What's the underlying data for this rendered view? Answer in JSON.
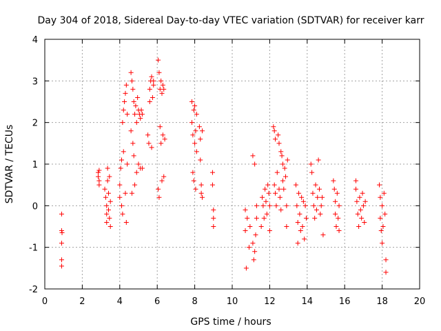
{
  "chart_data": {
    "type": "scatter",
    "title": "Day 304 of 2018, Sidereal Day-to-day VTEC variation (SDTVAR) for receiver karr",
    "xlabel": "GPS time / hours",
    "ylabel": "SDTVAR / TECUs",
    "xlim": [
      0,
      20
    ],
    "ylim": [
      -2,
      4
    ],
    "x_ticks": [
      0,
      2,
      4,
      6,
      8,
      10,
      12,
      14,
      16,
      18,
      20
    ],
    "y_ticks": [
      -2,
      -1,
      0,
      1,
      2,
      3,
      4
    ],
    "grid": true,
    "marker": "+",
    "point_color": "#ff0000",
    "series": [
      {
        "name": "SDTVAR",
        "points": [
          [
            0.9,
            -0.2
          ],
          [
            0.9,
            -0.6
          ],
          [
            0.9,
            -0.9
          ],
          [
            0.9,
            -1.3
          ],
          [
            0.9,
            -1.45
          ],
          [
            0.92,
            -0.65
          ],
          [
            2.85,
            0.8
          ],
          [
            2.85,
            0.7
          ],
          [
            2.9,
            0.6
          ],
          [
            2.9,
            0.5
          ],
          [
            2.9,
            0.85
          ],
          [
            3.2,
            0.4
          ],
          [
            3.25,
            0.2
          ],
          [
            3.3,
            0.0
          ],
          [
            3.3,
            -0.2
          ],
          [
            3.3,
            -0.4
          ],
          [
            3.35,
            0.6
          ],
          [
            3.35,
            0.9
          ],
          [
            3.4,
            0.3
          ],
          [
            3.4,
            -0.1
          ],
          [
            3.45,
            -0.3
          ],
          [
            3.45,
            0.7
          ],
          [
            3.5,
            0.1
          ],
          [
            3.5,
            -0.5
          ],
          [
            4.0,
            0.2
          ],
          [
            4.0,
            0.5
          ],
          [
            4.05,
            0.9
          ],
          [
            4.1,
            1.1
          ],
          [
            4.1,
            0.0
          ],
          [
            4.15,
            2.0
          ],
          [
            4.15,
            -0.2
          ],
          [
            4.2,
            2.3
          ],
          [
            4.2,
            1.3
          ],
          [
            4.25,
            2.5
          ],
          [
            4.3,
            2.7
          ],
          [
            4.3,
            0.3
          ],
          [
            4.35,
            2.9
          ],
          [
            4.35,
            -0.4
          ],
          [
            4.4,
            1.0
          ],
          [
            4.4,
            2.2
          ],
          [
            4.6,
            3.2
          ],
          [
            4.6,
            1.8
          ],
          [
            4.65,
            3.0
          ],
          [
            4.65,
            0.3
          ],
          [
            4.7,
            2.8
          ],
          [
            4.7,
            1.5
          ],
          [
            4.75,
            2.5
          ],
          [
            4.75,
            1.2
          ],
          [
            4.8,
            0.5
          ],
          [
            4.8,
            2.2
          ],
          [
            4.85,
            2.4
          ],
          [
            4.9,
            2.0
          ],
          [
            4.9,
            0.8
          ],
          [
            4.95,
            2.6
          ],
          [
            5.0,
            2.3
          ],
          [
            5.0,
            1.0
          ],
          [
            5.05,
            2.2
          ],
          [
            5.1,
            0.9
          ],
          [
            5.1,
            2.1
          ],
          [
            5.15,
            2.3
          ],
          [
            5.2,
            0.9
          ],
          [
            5.2,
            2.2
          ],
          [
            5.5,
            1.7
          ],
          [
            5.55,
            1.5
          ],
          [
            5.6,
            2.8
          ],
          [
            5.6,
            2.5
          ],
          [
            5.65,
            3.0
          ],
          [
            5.7,
            3.1
          ],
          [
            5.7,
            1.4
          ],
          [
            5.75,
            2.6
          ],
          [
            5.8,
            2.9
          ],
          [
            5.8,
            3.0
          ],
          [
            6.05,
            3.5
          ],
          [
            6.05,
            0.4
          ],
          [
            6.1,
            3.2
          ],
          [
            6.1,
            0.2
          ],
          [
            6.15,
            2.8
          ],
          [
            6.15,
            1.9
          ],
          [
            6.2,
            3.0
          ],
          [
            6.2,
            1.5
          ],
          [
            6.25,
            2.7
          ],
          [
            6.25,
            0.6
          ],
          [
            6.3,
            2.9
          ],
          [
            6.3,
            1.7
          ],
          [
            6.35,
            2.8
          ],
          [
            6.35,
            0.7
          ],
          [
            6.4,
            1.6
          ],
          [
            7.85,
            2.5
          ],
          [
            7.85,
            2.0
          ],
          [
            7.9,
            1.7
          ],
          [
            7.9,
            0.8
          ],
          [
            7.95,
            2.3
          ],
          [
            7.95,
            0.6
          ],
          [
            8.0,
            1.5
          ],
          [
            8.0,
            2.4
          ],
          [
            8.05,
            0.4
          ],
          [
            8.05,
            1.8
          ],
          [
            8.1,
            2.2
          ],
          [
            8.1,
            1.3
          ],
          [
            8.25,
            1.9
          ],
          [
            8.3,
            1.6
          ],
          [
            8.3,
            1.1
          ],
          [
            8.35,
            0.5
          ],
          [
            8.35,
            0.3
          ],
          [
            8.4,
            1.8
          ],
          [
            8.4,
            0.2
          ],
          [
            8.95,
            0.8
          ],
          [
            8.95,
            0.5
          ],
          [
            9.0,
            -0.1
          ],
          [
            9.0,
            -0.3
          ],
          [
            9.0,
            -0.5
          ],
          [
            10.7,
            -0.1
          ],
          [
            10.7,
            -0.6
          ],
          [
            10.75,
            -1.5
          ],
          [
            10.8,
            -0.3
          ],
          [
            10.9,
            -1.0
          ],
          [
            10.95,
            -0.5
          ],
          [
            11.1,
            1.2
          ],
          [
            11.1,
            -0.9
          ],
          [
            11.15,
            -1.3
          ],
          [
            11.2,
            1.0
          ],
          [
            11.2,
            -1.1
          ],
          [
            11.25,
            -0.7
          ],
          [
            11.3,
            -0.3
          ],
          [
            11.3,
            0.0
          ],
          [
            11.55,
            -0.5
          ],
          [
            11.6,
            0.2
          ],
          [
            11.65,
            0.0
          ],
          [
            11.7,
            -0.3
          ],
          [
            11.75,
            0.4
          ],
          [
            11.8,
            0.1
          ],
          [
            11.85,
            -0.2
          ],
          [
            11.9,
            0.5
          ],
          [
            11.95,
            0.3
          ],
          [
            12.0,
            0.0
          ],
          [
            12.0,
            -0.6
          ],
          [
            12.2,
            1.9
          ],
          [
            12.25,
            1.8
          ],
          [
            12.25,
            0.5
          ],
          [
            12.3,
            1.6
          ],
          [
            12.3,
            0.3
          ],
          [
            12.35,
            0.0
          ],
          [
            12.4,
            0.8
          ],
          [
            12.45,
            1.7
          ],
          [
            12.5,
            0.4
          ],
          [
            12.5,
            1.5
          ],
          [
            12.55,
            0.2
          ],
          [
            12.6,
            1.3
          ],
          [
            12.6,
            -0.1
          ],
          [
            12.65,
            1.2
          ],
          [
            12.7,
            1.0
          ],
          [
            12.7,
            0.6
          ],
          [
            12.75,
            0.4
          ],
          [
            12.8,
            0.9
          ],
          [
            12.85,
            0.7
          ],
          [
            12.9,
            0.0
          ],
          [
            12.9,
            -0.5
          ],
          [
            12.95,
            1.1
          ],
          [
            13.4,
            0.5
          ],
          [
            13.45,
            0.0
          ],
          [
            13.5,
            -0.4
          ],
          [
            13.5,
            -0.9
          ],
          [
            13.55,
            0.3
          ],
          [
            13.6,
            -0.2
          ],
          [
            13.65,
            -0.6
          ],
          [
            13.7,
            0.2
          ],
          [
            13.75,
            -0.5
          ],
          [
            13.8,
            0.1
          ],
          [
            13.85,
            -0.8
          ],
          [
            13.9,
            0.0
          ],
          [
            13.95,
            -0.3
          ],
          [
            14.2,
            1.0
          ],
          [
            14.25,
            0.8
          ],
          [
            14.3,
            0.3
          ],
          [
            14.35,
            0.0
          ],
          [
            14.4,
            -0.3
          ],
          [
            14.45,
            0.5
          ],
          [
            14.5,
            -0.1
          ],
          [
            14.55,
            0.2
          ],
          [
            14.6,
            1.1
          ],
          [
            14.65,
            0.4
          ],
          [
            14.7,
            -0.2
          ],
          [
            14.75,
            0.0
          ],
          [
            14.8,
            0.2
          ],
          [
            14.85,
            -0.7
          ],
          [
            15.4,
            0.6
          ],
          [
            15.45,
            0.4
          ],
          [
            15.5,
            0.1
          ],
          [
            15.5,
            -0.2
          ],
          [
            15.55,
            -0.5
          ],
          [
            15.6,
            0.3
          ],
          [
            15.65,
            -0.3
          ],
          [
            15.7,
            -0.6
          ],
          [
            15.7,
            0.0
          ],
          [
            16.6,
            0.6
          ],
          [
            16.6,
            0.4
          ],
          [
            16.65,
            0.1
          ],
          [
            16.7,
            -0.2
          ],
          [
            16.75,
            -0.5
          ],
          [
            16.8,
            0.2
          ],
          [
            16.85,
            -0.1
          ],
          [
            16.9,
            -0.3
          ],
          [
            16.95,
            0.3
          ],
          [
            17.0,
            0.0
          ],
          [
            17.05,
            -0.4
          ],
          [
            17.1,
            0.1
          ],
          [
            17.85,
            0.5
          ],
          [
            17.9,
            0.2
          ],
          [
            17.9,
            -0.3
          ],
          [
            17.95,
            -0.6
          ],
          [
            18.0,
            -0.9
          ],
          [
            18.0,
            0.0
          ],
          [
            18.05,
            -0.5
          ],
          [
            18.1,
            0.3
          ],
          [
            18.15,
            -0.2
          ],
          [
            18.2,
            -1.3
          ],
          [
            18.2,
            -1.6
          ]
        ]
      }
    ]
  }
}
